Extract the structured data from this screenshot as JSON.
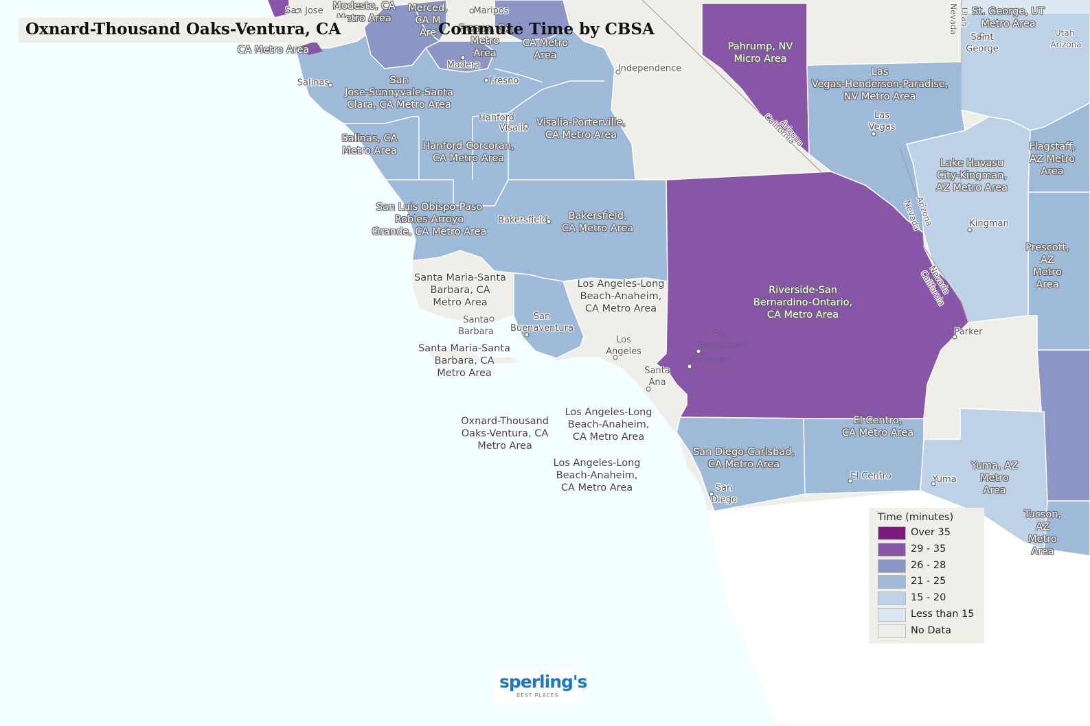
{
  "header": {
    "place_title": "Oxnard-Thousand Oaks-Ventura, CA",
    "map_title": "Commute Time by CBSA"
  },
  "legend": {
    "title": "Time (minutes)",
    "items": [
      {
        "label": "Over 35",
        "color": "#7d1a7d"
      },
      {
        "label": "29 - 35",
        "color": "#8856a7"
      },
      {
        "label": "26 - 28",
        "color": "#8c96c6"
      },
      {
        "label": "21 - 25",
        "color": "#9ebad9"
      },
      {
        "label": "15 - 20",
        "color": "#bdd1e7"
      },
      {
        "label": "Less than 15",
        "color": "#dde9f2"
      },
      {
        "label": "No Data",
        "color": "#efeee9"
      }
    ]
  },
  "colors": {
    "ocean": "#f2feff",
    "land_no_data": "#efeee9",
    "mexico": "#ffffff",
    "border": "#ffffff"
  },
  "regions": [
    {
      "label": "Modesto, CA\nMetro Area",
      "class": "26 - 28"
    },
    {
      "label": "Merced,\nCA M\nAre",
      "class": "26 - 28"
    },
    {
      "label": "Fresno, CA\nMetro\nArea",
      "class": "26 - 28"
    },
    {
      "label": "San\nFrancisco-Oakland-Hayward,\nCA Metro Area",
      "class": "26 - 28"
    },
    {
      "label": "CA Metro\nArea",
      "class": "21 - 25"
    },
    {
      "label": "San\nJose-Sunnyvale-Santa\nClara, CA Metro Area",
      "class": "21 - 25"
    },
    {
      "label": "Salinas, CA\nMetro Area",
      "class": "21 - 25"
    },
    {
      "label": "Hanford-Corcoran,\nCA Metro Area",
      "class": "21 - 25"
    },
    {
      "label": "Visalia-Porterville,\nCA Metro Area",
      "class": "21 - 25"
    },
    {
      "label": "Pahrump, NV\nMicro Area",
      "class": "29 - 35"
    },
    {
      "label": "Las\nVegas-Henderson-Paradise,\nNV Metro Area",
      "class": "21 - 25"
    },
    {
      "label": "St. George, UT\nMetro Area",
      "class": "15 - 20"
    },
    {
      "label": "Lake Havasu\nCity-Kingman,\nAZ Metro Area",
      "class": "15 - 20"
    },
    {
      "label": "Flagstaff,\nAZ Metro\nArea",
      "class": "21 - 25"
    },
    {
      "label": "Prescott,\nAZ Metro\nArea",
      "class": "21 - 25"
    },
    {
      "label": "San Luis Obispo-Paso\nRobles-Arroyo\nGrande, CA Metro Area",
      "class": "21 - 25"
    },
    {
      "label": "Bakersfield,\nCA Metro Area",
      "class": "21 - 25"
    },
    {
      "label": "Riverside-San\nBernardino-Ontario,\nCA Metro Area",
      "class": "29 - 35"
    },
    {
      "label": "Santa Maria-Santa\nBarbara, CA\nMetro Area",
      "class": "No Data"
    },
    {
      "label": "Los Angeles-Long\nBeach-Anaheim,\nCA Metro Area",
      "class": "No Data"
    },
    {
      "label": "Santa Maria-Santa\nBarbara, CA\nMetro Area",
      "class": "No Data"
    },
    {
      "label": "Oxnard-Thousand\nOaks-Ventura, CA\nMetro Area",
      "class": "No Data"
    },
    {
      "label": "Los Angeles-Long\nBeach-Anaheim,\nCA Metro Area",
      "class": "No Data"
    },
    {
      "label": "Los Angeles-Long\nBeach-Anaheim,\nCA Metro Area",
      "class": "No Data"
    },
    {
      "label": "San Diego-Carlsbad,\nCA Metro Area",
      "class": "21 - 25"
    },
    {
      "label": "El Centro,\nCA Metro Area",
      "class": "21 - 25"
    },
    {
      "label": "Yuma, AZ\nMetro\nArea",
      "class": "15 - 20"
    },
    {
      "label": "Tucson, AZ\nMetro Area",
      "class": "21 - 25"
    }
  ],
  "cities": [
    "San Jose",
    "Maripos",
    "Madera",
    "Fresno",
    "Salinas",
    "Hanford",
    "Visalia",
    "Independence",
    "Las\nVegas",
    "Saint\nGeorge",
    "Kingman",
    "Bakersfield",
    "Santa\nBarbara",
    "San\nBuenaventura",
    "Los\nAngeles",
    "San\nBernardino",
    "Riverside",
    "Santa\nAna",
    "Parker",
    "San\nDiego",
    "El Centro",
    "Yuma"
  ],
  "state_labels": [
    "Nevada",
    "Utah",
    "Utah",
    "Arizona",
    "California",
    "Nevada",
    "Arizona",
    "Nevada",
    "Arizona",
    "California"
  ],
  "logo": {
    "brand": "sperling's",
    "tagline": "BEST PLACES"
  }
}
